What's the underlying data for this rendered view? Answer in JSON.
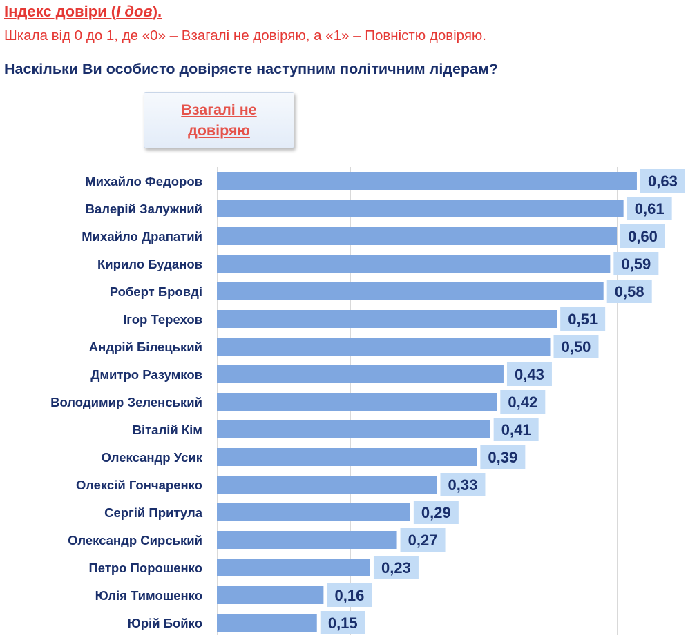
{
  "header": {
    "title_part1": "Індекс довіри (",
    "title_italic": "І дов",
    "title_part2": ").",
    "subtitle": "Шкала від 0 до 1, де «0» – Взагалі не довіряю, а «1» – Повністю довіряю.",
    "question": "Наскільки Ви особисто довіряєте наступним політичним лідерам?"
  },
  "legend": {
    "label": "Взагалі не довіряю"
  },
  "colors": {
    "title": "#e53935",
    "question": "#1a2f6b",
    "bar": "#7fa7e0",
    "value_box": "#c3dcf6",
    "grid": "#d9d9d9"
  },
  "chart_data": {
    "type": "bar",
    "orientation": "horizontal",
    "categories": [
      "Михайло Федоров",
      "Валерій Залужний",
      "Михайло Драпатий",
      "Кирило Буданов",
      "Роберт Бровді",
      "Ігор Терехов",
      "Андрій Білецький",
      "Дмитро Разумков",
      "Володимир Зеленський",
      "Віталій Кім",
      "Олександр Усик",
      "Олексій Гончаренко",
      "Сергій Притула",
      "Олександр Сирський",
      "Петро Порошенко",
      "Юлія Тимошенко",
      "Юрій Бойко"
    ],
    "values": [
      0.63,
      0.61,
      0.6,
      0.59,
      0.58,
      0.51,
      0.5,
      0.43,
      0.42,
      0.41,
      0.39,
      0.33,
      0.29,
      0.27,
      0.23,
      0.16,
      0.15
    ],
    "value_labels": [
      "0,63",
      "0,61",
      "0,60",
      "0,59",
      "0,58",
      "0,51",
      "0,50",
      "0,43",
      "0,42",
      "0,41",
      "0,39",
      "0,33",
      "0,29",
      "0,27",
      "0,23",
      "0,16",
      "0,15"
    ],
    "xlim": [
      0,
      0.6
    ],
    "grid": true,
    "legend": "top-left"
  }
}
